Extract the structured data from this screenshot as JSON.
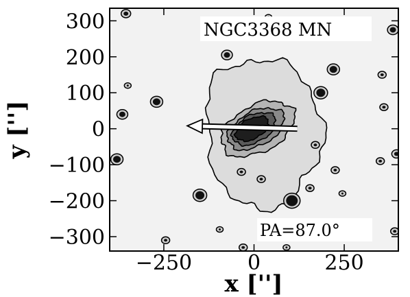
{
  "chart_data": {
    "type": "contour",
    "object_label": "NGC3368 MN",
    "pa_label": "PA=87.0°",
    "xlabel": "x ['']",
    "ylabel": "y ['']",
    "xlim": [
      -400,
      400
    ],
    "ylim": [
      -340,
      335
    ],
    "xticks": [
      -250,
      0,
      250
    ],
    "yticks": [
      300,
      200,
      100,
      0,
      -100,
      -200,
      -300
    ],
    "xtick_labels": [
      "−250",
      "0",
      "250"
    ],
    "ytick_labels": [
      "300",
      "200",
      "100",
      "0",
      "−100",
      "−200",
      "−300"
    ],
    "position_angle_deg": 87.0,
    "arrow": {
      "from": [
        120,
        0
      ],
      "to": [
        -185,
        8
      ]
    },
    "contour_levels": [
      {
        "level": 1,
        "fill": "#dcdcdc",
        "rx": 170,
        "ry": 195,
        "cx": 20,
        "cy": 0,
        "rotation_deg": 10
      },
      {
        "level": 2,
        "fill": "#b4b4b4",
        "rx": 110,
        "ry": 65,
        "cx": 10,
        "cy": 0,
        "rotation_deg": 28
      },
      {
        "level": 3,
        "fill": "#8a8a8a",
        "rx": 85,
        "ry": 48,
        "cx": 5,
        "cy": 0,
        "rotation_deg": 28
      },
      {
        "level": 4,
        "fill": "#5a5a5a",
        "rx": 65,
        "ry": 38,
        "cx": 0,
        "cy": 0,
        "rotation_deg": 28
      },
      {
        "level": 5,
        "fill": "#1e1e1e",
        "rx": 50,
        "ry": 28,
        "cx": -5,
        "cy": 0,
        "rotation_deg": 28
      }
    ],
    "sources": [
      {
        "x": -355,
        "y": 320,
        "r": 5
      },
      {
        "x": 385,
        "y": 275,
        "r": 6
      },
      {
        "x": -75,
        "y": 205,
        "r": 6
      },
      {
        "x": 220,
        "y": 165,
        "r": 7
      },
      {
        "x": 355,
        "y": 150,
        "r": 4
      },
      {
        "x": -350,
        "y": 120,
        "r": 3
      },
      {
        "x": 185,
        "y": 100,
        "r": 8
      },
      {
        "x": -270,
        "y": 75,
        "r": 7
      },
      {
        "x": -365,
        "y": 40,
        "r": 6
      },
      {
        "x": 360,
        "y": 60,
        "r": 4
      },
      {
        "x": -380,
        "y": -85,
        "r": 7
      },
      {
        "x": 350,
        "y": -90,
        "r": 4
      },
      {
        "x": 395,
        "y": -70,
        "r": 5
      },
      {
        "x": 225,
        "y": -115,
        "r": 4
      },
      {
        "x": 170,
        "y": -45,
        "r": 4
      },
      {
        "x": -35,
        "y": -120,
        "r": 4
      },
      {
        "x": 20,
        "y": -140,
        "r": 4
      },
      {
        "x": 155,
        "y": -165,
        "r": 4
      },
      {
        "x": 105,
        "y": -200,
        "r": 10
      },
      {
        "x": -150,
        "y": -185,
        "r": 8
      },
      {
        "x": 390,
        "y": -285,
        "r": 4
      },
      {
        "x": -245,
        "y": -310,
        "r": 4
      },
      {
        "x": -30,
        "y": -330,
        "r": 4
      },
      {
        "x": 90,
        "y": -330,
        "r": 3
      },
      {
        "x": 40,
        "y": 310,
        "r": 3
      },
      {
        "x": 245,
        "y": -180,
        "r": 3
      },
      {
        "x": -95,
        "y": -280,
        "r": 3
      }
    ]
  }
}
